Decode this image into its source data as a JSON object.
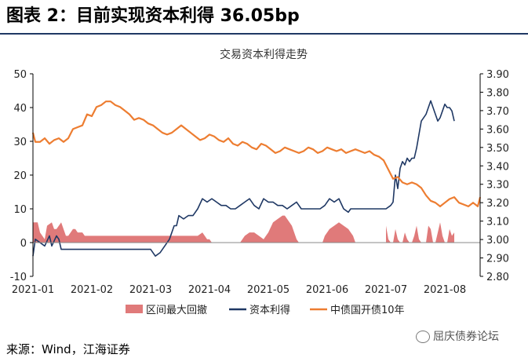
{
  "header": {
    "title": "图表 2：目前实现资本利得 36.05bp"
  },
  "footer": {
    "source": "来源：Wind，江海证券",
    "watermark": "屈庆债券论坛"
  },
  "chart_data": {
    "type": "line",
    "title": "交易资本利得走势",
    "x_ticks": [
      "2021-01",
      "2021-02",
      "2021-03",
      "2021-04",
      "2021-05",
      "2021-06",
      "2021-07",
      "2021-08"
    ],
    "left_axis": {
      "ylim": [
        -10,
        50
      ],
      "ticks": [
        "-10",
        "0",
        "10",
        "20",
        "30",
        "40",
        "50"
      ]
    },
    "right_axis": {
      "ylim": [
        2.8,
        3.9
      ],
      "ticks": [
        "2.80",
        "2.90",
        "3.00",
        "3.10",
        "3.20",
        "3.30",
        "3.40",
        "3.50",
        "3.60",
        "3.70",
        "3.80",
        "3.90"
      ]
    },
    "grid": false,
    "legend_position": "bottom",
    "series": [
      {
        "name": "区间最大回撤",
        "type": "area",
        "axis": "left",
        "color": "#e07a7a",
        "data": [
          [
            0,
            6
          ],
          [
            2,
            6
          ],
          [
            3,
            3
          ],
          [
            5,
            1
          ],
          [
            6,
            5
          ],
          [
            8,
            6
          ],
          [
            9,
            4
          ],
          [
            10,
            4
          ],
          [
            11,
            5
          ],
          [
            12,
            6
          ],
          [
            14,
            2
          ],
          [
            15,
            2
          ],
          [
            16,
            3
          ],
          [
            17,
            4
          ],
          [
            18,
            4
          ],
          [
            19,
            3
          ],
          [
            20,
            3
          ],
          [
            21,
            3
          ],
          [
            22,
            2
          ],
          [
            23,
            2
          ],
          [
            70,
            2
          ],
          [
            72,
            3
          ],
          [
            74,
            1
          ],
          [
            75,
            1
          ],
          [
            76,
            0
          ],
          [
            77,
            0
          ],
          [
            88,
            0
          ],
          [
            90,
            2
          ],
          [
            92,
            3
          ],
          [
            94,
            3
          ],
          [
            96,
            2
          ],
          [
            98,
            1
          ],
          [
            99,
            2
          ],
          [
            100,
            3
          ],
          [
            102,
            6
          ],
          [
            104,
            7
          ],
          [
            106,
            8
          ],
          [
            107,
            8
          ],
          [
            108,
            7
          ],
          [
            110,
            5
          ],
          [
            111,
            3
          ],
          [
            112,
            1
          ],
          [
            113,
            0
          ],
          [
            123,
            0
          ],
          [
            124,
            2
          ],
          [
            126,
            4
          ],
          [
            128,
            5
          ],
          [
            130,
            6
          ],
          [
            132,
            5
          ],
          [
            134,
            4
          ],
          [
            136,
            2
          ],
          [
            137,
            0
          ],
          [
            150,
            0
          ],
          [
            150,
            5
          ],
          [
            151,
            1
          ],
          [
            152,
            0
          ],
          [
            153,
            0
          ],
          [
            154,
            4
          ],
          [
            155,
            1
          ],
          [
            156,
            0
          ],
          [
            157,
            0
          ],
          [
            158,
            3
          ],
          [
            159,
            1
          ],
          [
            160,
            0
          ],
          [
            161,
            0
          ],
          [
            162,
            2
          ],
          [
            163,
            5
          ],
          [
            164,
            1
          ],
          [
            165,
            0
          ],
          [
            167,
            0
          ],
          [
            168,
            5
          ],
          [
            169,
            4
          ],
          [
            170,
            0
          ],
          [
            171,
            0
          ],
          [
            172,
            3
          ],
          [
            173,
            6
          ],
          [
            174,
            2
          ],
          [
            175,
            0
          ],
          [
            176,
            0
          ],
          [
            177,
            4
          ],
          [
            178,
            2
          ],
          [
            179,
            3
          ]
        ]
      },
      {
        "name": "资本利得",
        "type": "line",
        "axis": "left",
        "color": "#1f3864",
        "data": [
          [
            0,
            -4
          ],
          [
            1,
            1
          ],
          [
            3,
            0
          ],
          [
            5,
            -1
          ],
          [
            7,
            2
          ],
          [
            8,
            -1
          ],
          [
            10,
            2
          ],
          [
            11,
            1
          ],
          [
            12,
            -2
          ],
          [
            14,
            -2
          ],
          [
            30,
            -2
          ],
          [
            50,
            -2
          ],
          [
            52,
            -4
          ],
          [
            54,
            -3
          ],
          [
            56,
            -1
          ],
          [
            58,
            1
          ],
          [
            60,
            5
          ],
          [
            61,
            5
          ],
          [
            62,
            8
          ],
          [
            64,
            7
          ],
          [
            66,
            8
          ],
          [
            68,
            8
          ],
          [
            70,
            10
          ],
          [
            72,
            13
          ],
          [
            74,
            12
          ],
          [
            76,
            13
          ],
          [
            78,
            12
          ],
          [
            80,
            11
          ],
          [
            82,
            11
          ],
          [
            84,
            10
          ],
          [
            86,
            10
          ],
          [
            88,
            11
          ],
          [
            90,
            12
          ],
          [
            92,
            13
          ],
          [
            94,
            11
          ],
          [
            96,
            10
          ],
          [
            98,
            13
          ],
          [
            100,
            12
          ],
          [
            102,
            12
          ],
          [
            104,
            11
          ],
          [
            106,
            11
          ],
          [
            108,
            10
          ],
          [
            110,
            11
          ],
          [
            112,
            12
          ],
          [
            114,
            10
          ],
          [
            116,
            10
          ],
          [
            118,
            10
          ],
          [
            122,
            10
          ],
          [
            124,
            11
          ],
          [
            126,
            13
          ],
          [
            128,
            12
          ],
          [
            130,
            13
          ],
          [
            132,
            10
          ],
          [
            134,
            9
          ],
          [
            135,
            10
          ],
          [
            136,
            10
          ],
          [
            150,
            10
          ],
          [
            152,
            11
          ],
          [
            153,
            12
          ],
          [
            154,
            20
          ],
          [
            155,
            16
          ],
          [
            156,
            22
          ],
          [
            157,
            24
          ],
          [
            158,
            23
          ],
          [
            159,
            25
          ],
          [
            160,
            24
          ],
          [
            161,
            25
          ],
          [
            162,
            25
          ],
          [
            163,
            28
          ],
          [
            164,
            32
          ],
          [
            165,
            36
          ],
          [
            166,
            37
          ],
          [
            167,
            38
          ],
          [
            168,
            40
          ],
          [
            169,
            42
          ],
          [
            170,
            40
          ],
          [
            171,
            38
          ],
          [
            172,
            36
          ],
          [
            173,
            37
          ],
          [
            174,
            39
          ],
          [
            175,
            41
          ],
          [
            176,
            40
          ],
          [
            177,
            40
          ],
          [
            178,
            39
          ],
          [
            179,
            36
          ]
        ]
      },
      {
        "name": "中债国开债10年",
        "type": "line",
        "axis": "right",
        "color": "#ed7d31",
        "data": [
          [
            0,
            3.58
          ],
          [
            1,
            3.53
          ],
          [
            3,
            3.53
          ],
          [
            5,
            3.55
          ],
          [
            7,
            3.52
          ],
          [
            9,
            3.54
          ],
          [
            11,
            3.55
          ],
          [
            13,
            3.53
          ],
          [
            15,
            3.55
          ],
          [
            17,
            3.6
          ],
          [
            19,
            3.61
          ],
          [
            21,
            3.62
          ],
          [
            23,
            3.68
          ],
          [
            25,
            3.67
          ],
          [
            27,
            3.72
          ],
          [
            29,
            3.73
          ],
          [
            31,
            3.75
          ],
          [
            33,
            3.75
          ],
          [
            35,
            3.73
          ],
          [
            37,
            3.72
          ],
          [
            39,
            3.7
          ],
          [
            41,
            3.68
          ],
          [
            43,
            3.65
          ],
          [
            45,
            3.66
          ],
          [
            47,
            3.65
          ],
          [
            49,
            3.63
          ],
          [
            51,
            3.62
          ],
          [
            53,
            3.6
          ],
          [
            55,
            3.58
          ],
          [
            57,
            3.57
          ],
          [
            59,
            3.58
          ],
          [
            61,
            3.6
          ],
          [
            63,
            3.62
          ],
          [
            65,
            3.6
          ],
          [
            67,
            3.58
          ],
          [
            69,
            3.56
          ],
          [
            71,
            3.54
          ],
          [
            73,
            3.55
          ],
          [
            75,
            3.57
          ],
          [
            77,
            3.56
          ],
          [
            79,
            3.54
          ],
          [
            81,
            3.53
          ],
          [
            83,
            3.55
          ],
          [
            85,
            3.52
          ],
          [
            87,
            3.51
          ],
          [
            89,
            3.53
          ],
          [
            91,
            3.52
          ],
          [
            93,
            3.5
          ],
          [
            95,
            3.49
          ],
          [
            97,
            3.52
          ],
          [
            99,
            3.51
          ],
          [
            101,
            3.49
          ],
          [
            103,
            3.47
          ],
          [
            105,
            3.48
          ],
          [
            107,
            3.5
          ],
          [
            109,
            3.49
          ],
          [
            111,
            3.48
          ],
          [
            113,
            3.47
          ],
          [
            115,
            3.48
          ],
          [
            117,
            3.5
          ],
          [
            119,
            3.49
          ],
          [
            121,
            3.47
          ],
          [
            123,
            3.48
          ],
          [
            125,
            3.5
          ],
          [
            127,
            3.49
          ],
          [
            129,
            3.48
          ],
          [
            131,
            3.49
          ],
          [
            133,
            3.47
          ],
          [
            135,
            3.48
          ],
          [
            137,
            3.49
          ],
          [
            139,
            3.48
          ],
          [
            141,
            3.47
          ],
          [
            143,
            3.48
          ],
          [
            145,
            3.46
          ],
          [
            147,
            3.45
          ],
          [
            149,
            3.43
          ],
          [
            151,
            3.38
          ],
          [
            153,
            3.33
          ],
          [
            155,
            3.34
          ],
          [
            157,
            3.31
          ],
          [
            159,
            3.3
          ],
          [
            161,
            3.31
          ],
          [
            163,
            3.3
          ],
          [
            165,
            3.28
          ],
          [
            167,
            3.24
          ],
          [
            169,
            3.21
          ],
          [
            171,
            3.2
          ],
          [
            173,
            3.18
          ],
          [
            175,
            3.2
          ],
          [
            177,
            3.22
          ],
          [
            179,
            3.23
          ],
          [
            181,
            3.2
          ],
          [
            183,
            3.19
          ],
          [
            185,
            3.18
          ],
          [
            187,
            3.2
          ],
          [
            189,
            3.18
          ],
          [
            190,
            3.23
          ]
        ]
      }
    ]
  }
}
